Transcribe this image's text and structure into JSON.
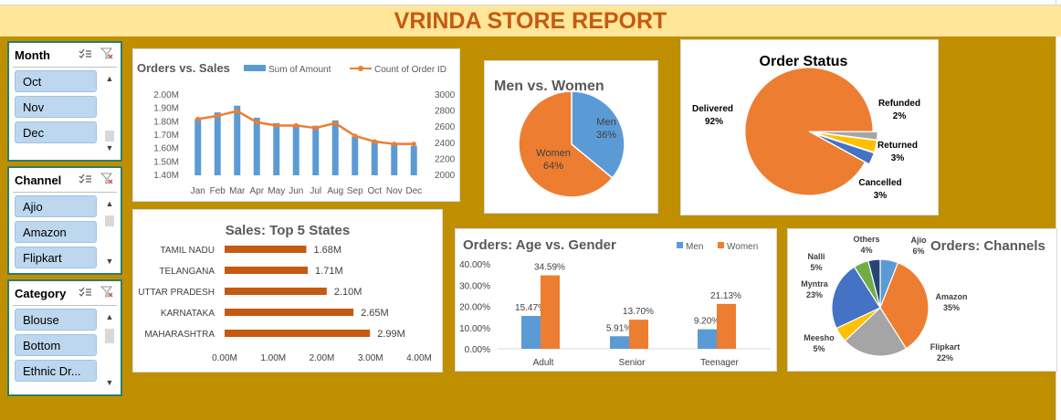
{
  "report_title": "VRINDA STORE REPORT",
  "colors": {
    "banner_bg": "#ffe699",
    "title": "#c55a11",
    "board_bg": "#bf8f00",
    "blue": "#5b9bd5",
    "orange": "#ed7d31",
    "gray": "#a5a5a5",
    "yellow": "#ffc000",
    "navy": "#4472c4",
    "green": "#70ad47",
    "darkblue": "#264478",
    "bar_orange": "#c55a11"
  },
  "slicers": [
    {
      "title": "Month",
      "items": [
        "Oct",
        "Nov",
        "Dec"
      ]
    },
    {
      "title": "Channel",
      "items": [
        "Ajio",
        "Amazon",
        "Flipkart"
      ]
    },
    {
      "title": "Category",
      "items": [
        "Blouse",
        "Bottom",
        "Ethnic Dr..."
      ]
    }
  ],
  "icons": {
    "multiselect": "multi-select-icon",
    "clear_filter": "clear-filter-icon"
  },
  "chart_data": [
    {
      "type": "line",
      "title": "Orders vs. Sales",
      "legend": [
        "Sum of Amount",
        "Count of Order ID"
      ],
      "categories": [
        "Jan",
        "Feb",
        "Mar",
        "Apr",
        "May",
        "Jun",
        "Jul",
        "Aug",
        "Sep",
        "Oct",
        "Nov",
        "Dec"
      ],
      "series": [
        {
          "name": "Sum of Amount",
          "kind": "bar",
          "axis": "left",
          "values": [
            1.82,
            1.87,
            1.92,
            1.83,
            1.79,
            1.78,
            1.77,
            1.81,
            1.69,
            1.66,
            1.63,
            1.62
          ]
        },
        {
          "name": "Count of Order ID",
          "kind": "line",
          "axis": "right",
          "values": [
            2700,
            2740,
            2800,
            2660,
            2620,
            2620,
            2590,
            2650,
            2490,
            2420,
            2390,
            2390
          ]
        }
      ],
      "y_left_ticks": [
        "2.00M",
        "1.90M",
        "1.80M",
        "1.70M",
        "1.60M",
        "1.50M",
        "1.40M"
      ],
      "y_left_range": [
        1.4,
        2.0
      ],
      "y_right_ticks": [
        "3000",
        "2800",
        "2600",
        "2400",
        "2200",
        "2000"
      ],
      "y_right_range": [
        2000,
        3000
      ]
    },
    {
      "type": "pie",
      "title": "Men vs. Women",
      "slices": [
        {
          "label": "Men",
          "pct": "36%",
          "value": 36
        },
        {
          "label": "Women",
          "pct": "64%",
          "value": 64
        }
      ]
    },
    {
      "type": "pie",
      "title": "Order Status",
      "slices": [
        {
          "label": "Delivered",
          "pct": "92%",
          "value": 92
        },
        {
          "label": "Refunded",
          "pct": "2%",
          "value": 2
        },
        {
          "label": "Returned",
          "pct": "3%",
          "value": 3
        },
        {
          "label": "Cancelled",
          "pct": "3%",
          "value": 3
        }
      ]
    },
    {
      "type": "bar",
      "orientation": "horizontal",
      "title": "Sales: Top 5 States",
      "categories": [
        "TAMIL NADU",
        "TELANGANA",
        "UTTAR PRADESH",
        "KARNATAKA",
        "MAHARASHTRA"
      ],
      "values": [
        1.68,
        1.71,
        2.1,
        2.65,
        2.99
      ],
      "value_labels": [
        "1.68M",
        "1.71M",
        "2.10M",
        "2.65M",
        "2.99M"
      ],
      "x_ticks": [
        "0.00M",
        "1.00M",
        "2.00M",
        "3.00M",
        "4.00M"
      ],
      "xlim": [
        0,
        4
      ]
    },
    {
      "type": "bar",
      "title": "Orders: Age vs. Gender",
      "categories": [
        "Adult",
        "Senior",
        "Teenager"
      ],
      "series": [
        {
          "name": "Men",
          "values": [
            15.47,
            5.91,
            9.2
          ],
          "labels": [
            "15.47%",
            "5.91%",
            "9.20%"
          ]
        },
        {
          "name": "Women",
          "values": [
            34.59,
            13.7,
            21.13
          ],
          "labels": [
            "34.59%",
            "13.70%",
            "21.13%"
          ]
        }
      ],
      "y_ticks": [
        "40.00%",
        "30.00%",
        "20.00%",
        "10.00%",
        "0.00%"
      ],
      "ylim": [
        0,
        40
      ]
    },
    {
      "type": "pie",
      "title": "Orders: Channels",
      "slices": [
        {
          "label": "Ajio",
          "pct": "6%",
          "value": 6
        },
        {
          "label": "Amazon",
          "pct": "35%",
          "value": 35
        },
        {
          "label": "Flipkart",
          "pct": "22%",
          "value": 22
        },
        {
          "label": "Meesho",
          "pct": "5%",
          "value": 5
        },
        {
          "label": "Myntra",
          "pct": "23%",
          "value": 23
        },
        {
          "label": "Nalli",
          "pct": "5%",
          "value": 5
        },
        {
          "label": "Others",
          "pct": "4%",
          "value": 4
        }
      ]
    }
  ]
}
